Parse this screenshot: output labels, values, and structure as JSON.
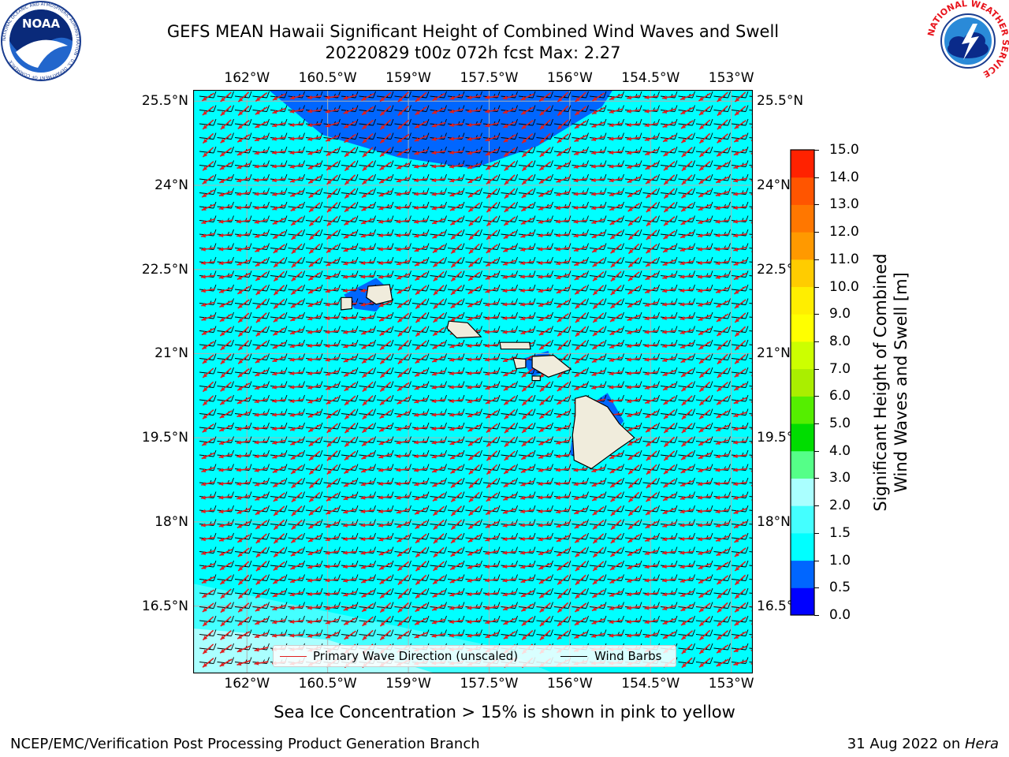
{
  "title": {
    "line1": "GEFS MEAN Hawaii Significant Height of Combined Wind Waves and Swell",
    "line2": "20220829 t00z 072h fcst   Max: 2.27"
  },
  "map": {
    "lon_labels": [
      "162°W",
      "160.5°W",
      "159°W",
      "157.5°W",
      "156°W",
      "154.5°W",
      "153°W"
    ],
    "lat_labels": [
      "25.5°N",
      "24°N",
      "22.5°N",
      "21°N",
      "19.5°N",
      "18°N",
      "16.5°N"
    ],
    "lon_range": [
      -163,
      -152.6
    ],
    "lat_range": [
      15.3,
      25.7
    ],
    "ocean_color": "#00ffff",
    "land_color": "#f0ecdc",
    "arrow_color": "#e02020"
  },
  "legend": {
    "items": [
      {
        "label": "Primary Wave Direction (unscaled)",
        "color": "#e02020"
      },
      {
        "label": "Wind Barbs",
        "color": "#000000"
      }
    ]
  },
  "colorbar": {
    "label_line1": "Significant Height of Combined",
    "label_line2": "Wind Waves and Swell [m]",
    "ticks": [
      "0.0",
      "0.5",
      "1.0",
      "1.5",
      "2.0",
      "3.0",
      "4.0",
      "5.0",
      "6.0",
      "7.0",
      "8.0",
      "9.0",
      "10.0",
      "11.0",
      "12.0",
      "13.0",
      "14.0",
      "15.0"
    ],
    "colors": [
      "#0000ff",
      "#0066ff",
      "#00ffff",
      "#44ffff",
      "#aaffff",
      "#55ff88",
      "#00dd00",
      "#55ee00",
      "#aaee00",
      "#ccff00",
      "#ffff00",
      "#ffee00",
      "#ffcc00",
      "#ff9900",
      "#ff7700",
      "#ff5500",
      "#ff2200"
    ]
  },
  "sea_ice_note": "Sea Ice Concentration > 15% is shown in pink to yellow",
  "footer": {
    "left": "NCEP/EMC/Verification Post Processing Product Generation Branch",
    "right_prefix": "31 Aug 2022 on ",
    "right_host": "Hera"
  },
  "logos": {
    "noaa_text": "NOAA",
    "noaa_ring": "NATIONAL OCEANIC AND ATMOSPHERIC ADMINISTRATION · U.S. DEPARTMENT OF COMMERCE",
    "nws_ring": "NATIONAL WEATHER SERVICE"
  }
}
